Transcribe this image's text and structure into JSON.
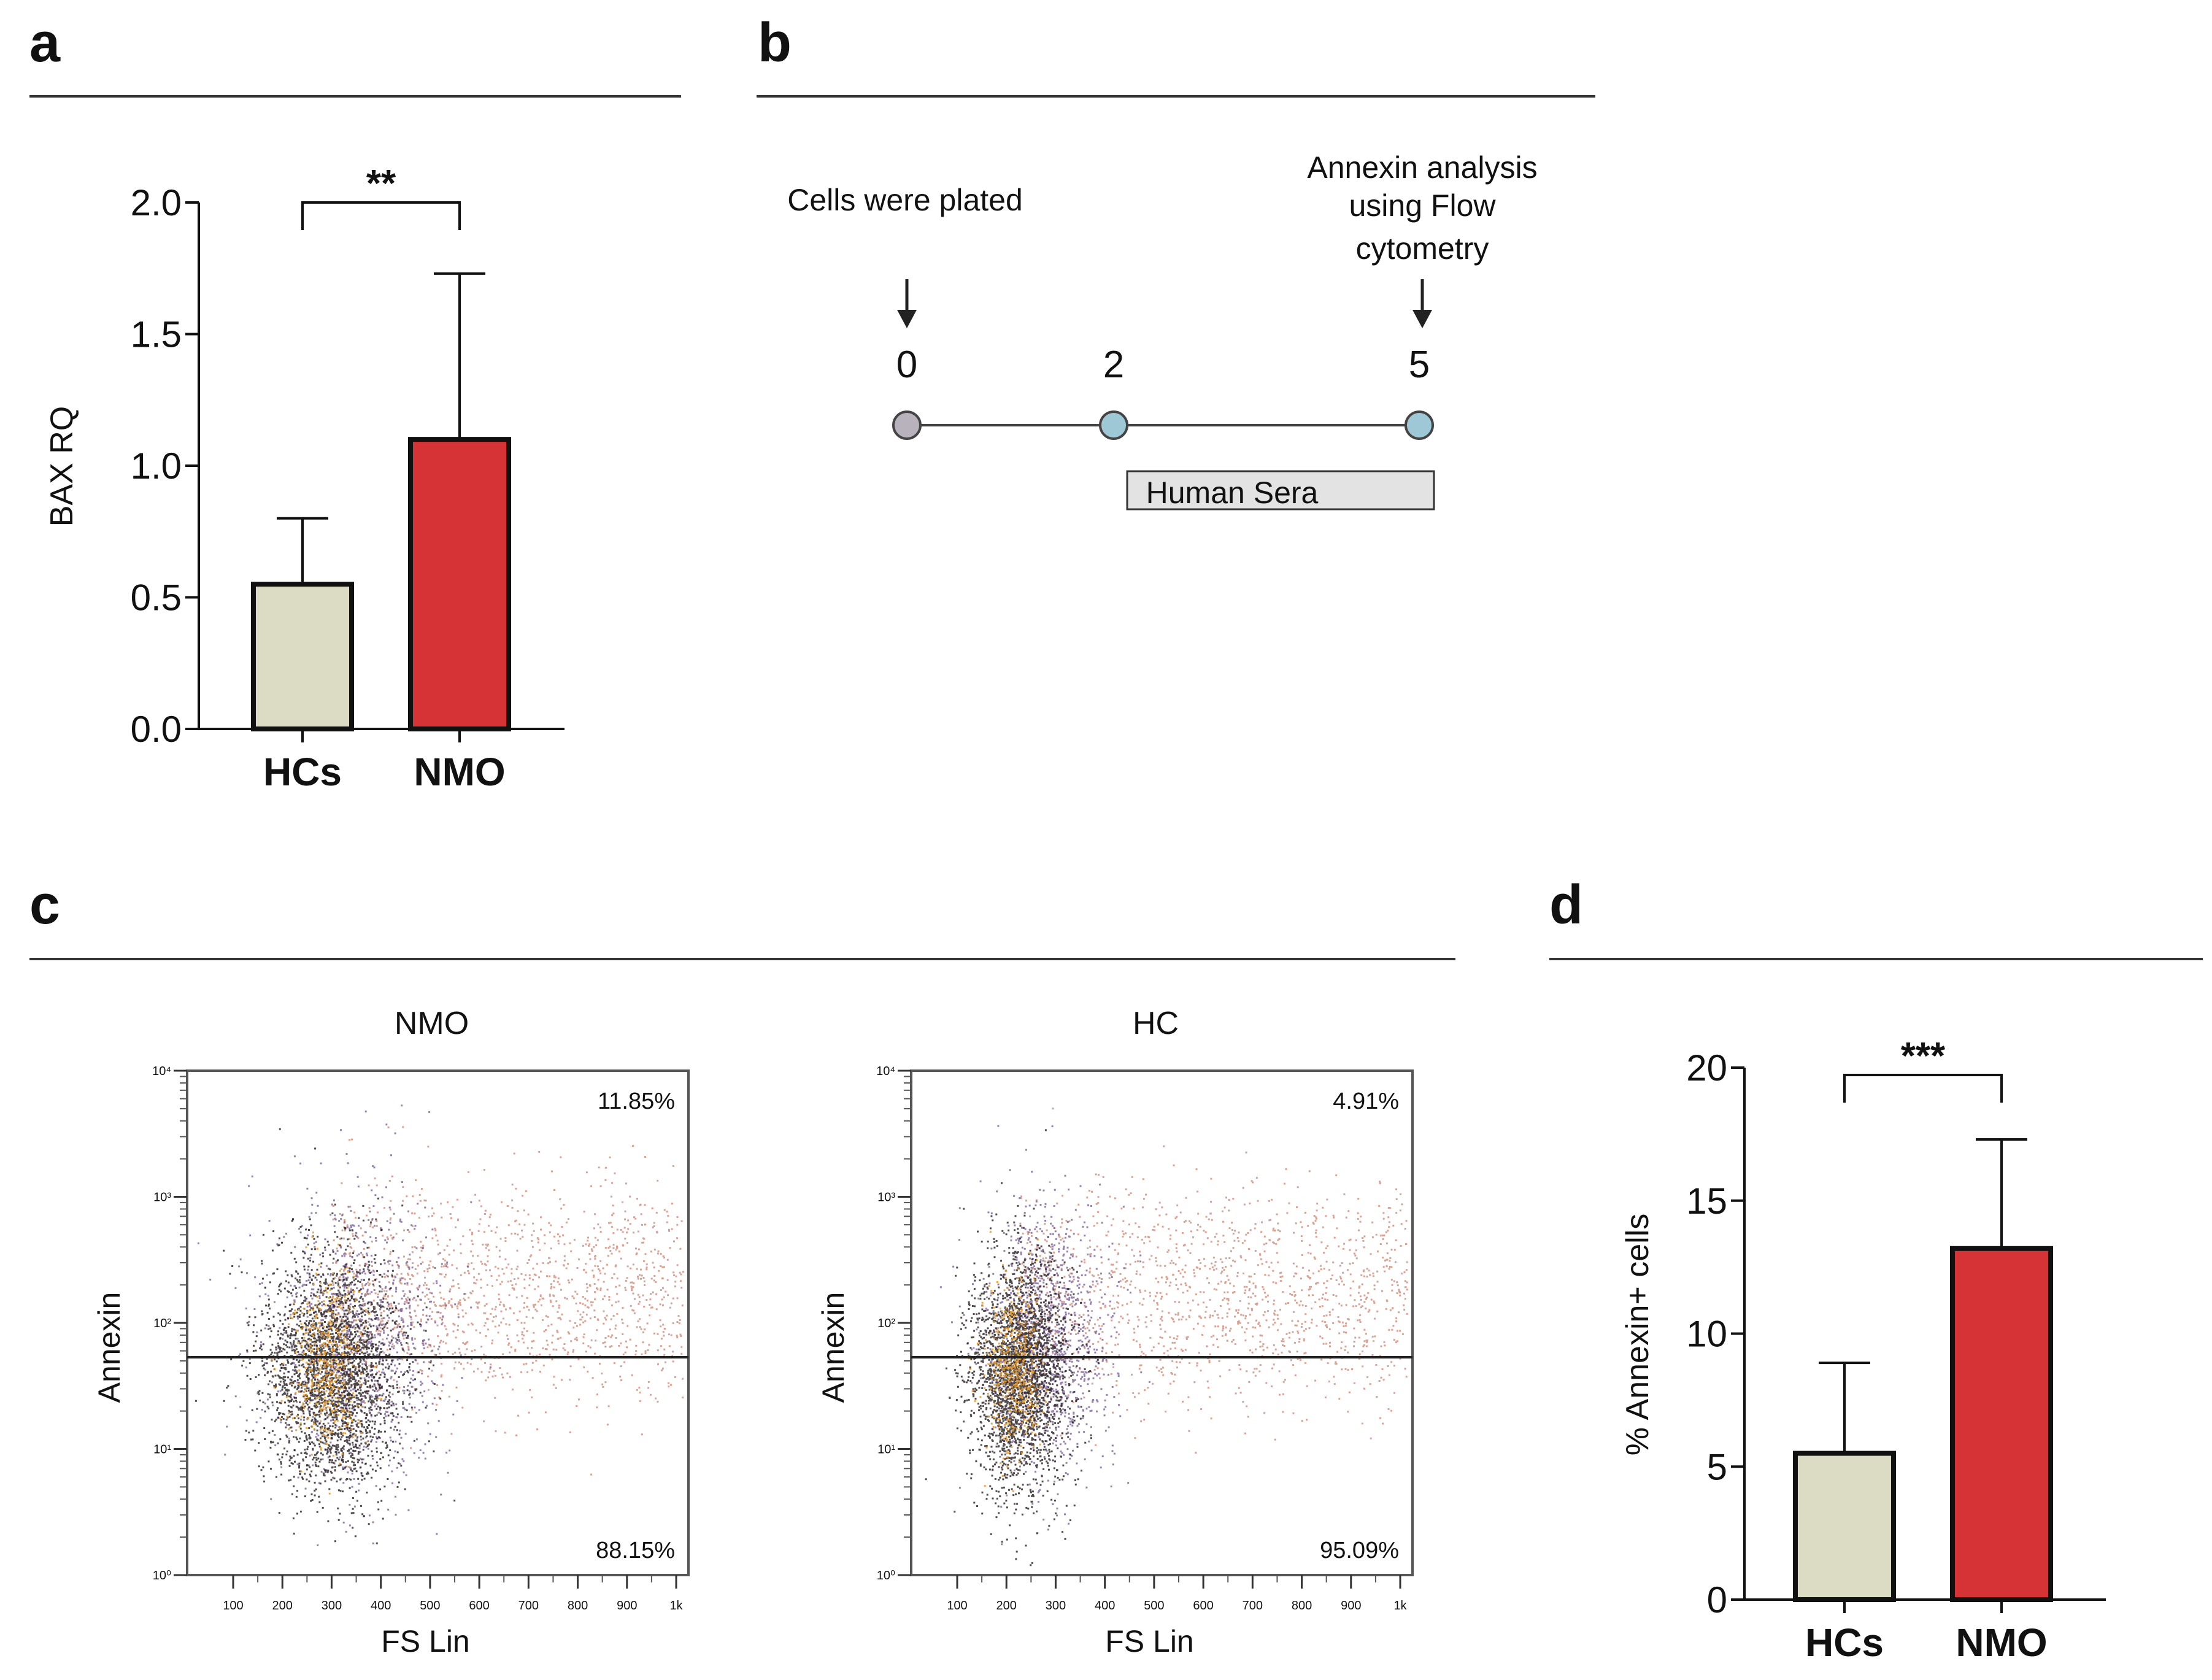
{
  "panels": {
    "a": {
      "letter": "a"
    },
    "b": {
      "letter": "b"
    },
    "c": {
      "letter": "c"
    },
    "d": {
      "letter": "d"
    }
  },
  "chart_data": [
    {
      "id": "a",
      "type": "bar",
      "categories": [
        "HCs",
        "NMO"
      ],
      "values": [
        0.55,
        1.1
      ],
      "errors": [
        0.25,
        0.63
      ],
      "ylabel": "BAX RQ",
      "ylim": [
        0,
        2.0
      ],
      "yticks": [
        "0.0",
        "0.5",
        "1.0",
        "1.5",
        "2.0"
      ],
      "significance": "**",
      "colors": [
        "#dcdcc4",
        "#d63336"
      ]
    },
    {
      "id": "d",
      "type": "bar",
      "categories": [
        "HCs",
        "NMO"
      ],
      "values": [
        5.5,
        13.2
      ],
      "errors": [
        3.4,
        4.1
      ],
      "ylabel": "% Annexin+ cells",
      "ylim": [
        0,
        20
      ],
      "yticks": [
        "0",
        "5",
        "10",
        "15",
        "20"
      ],
      "significance": "***",
      "colors": [
        "#dcdcc4",
        "#d63336"
      ]
    },
    {
      "id": "c",
      "type": "scatter",
      "plots": [
        {
          "title": "NMO",
          "upper_pct": "11.85%",
          "lower_pct": "88.15%"
        },
        {
          "title": "HC",
          "upper_pct": "4.91%",
          "lower_pct": "95.09%"
        }
      ],
      "xlabel": "FS Lin",
      "ylabel": "Annexin",
      "xticks": [
        "100",
        "200",
        "300",
        "400",
        "500",
        "600",
        "700",
        "800",
        "900",
        "1k"
      ],
      "yticks": [
        "10⁰",
        "10¹",
        "10²",
        "10³",
        "10⁴"
      ]
    }
  ],
  "timeline": {
    "start_label": "Cells were plated",
    "end_label_lines": [
      "Annexin analysis",
      "using Flow",
      "cytometry"
    ],
    "days": [
      "0",
      "2",
      "5"
    ],
    "treatment_label": "Human Sera",
    "node_colors": [
      "#b8b2bd",
      "#9fc8d6",
      "#9fc8d6"
    ]
  }
}
